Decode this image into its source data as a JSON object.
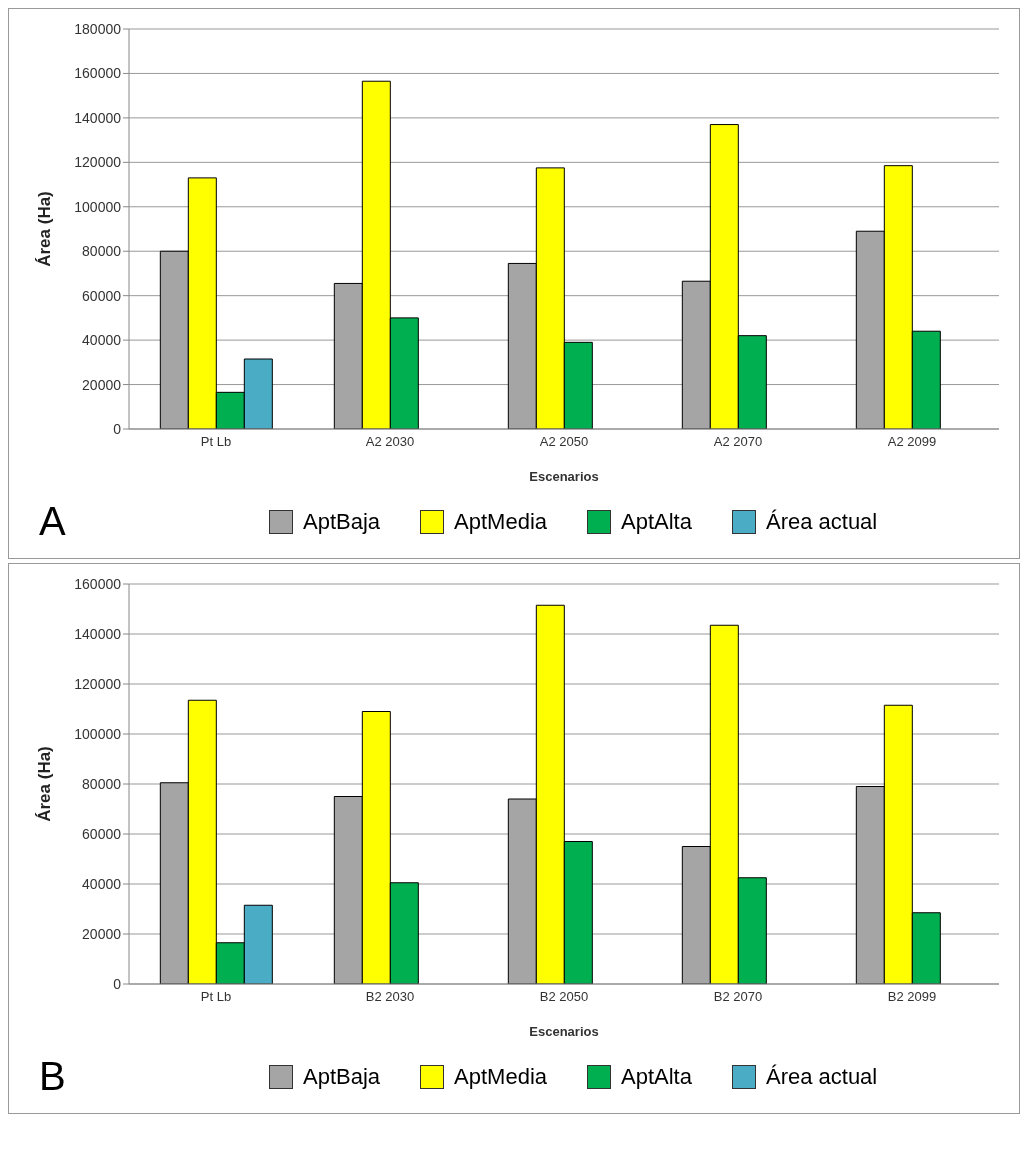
{
  "chart_data": [
    {
      "type": "bar",
      "title": "A",
      "xlabel": "Escenarios",
      "ylabel": "Área (Ha)",
      "categories": [
        "Pt Lb",
        "A2 2030",
        "A2 2050",
        "A2 2070",
        "A2 2099"
      ],
      "ylim": [
        0,
        180000
      ],
      "yticks": [
        0,
        20000,
        40000,
        60000,
        80000,
        100000,
        120000,
        140000,
        160000,
        180000
      ],
      "grid": "y",
      "legend": "bottom",
      "series": [
        {
          "name": "AptBaja",
          "color": "#a5a5a5",
          "values": [
            80000,
            65500,
            74500,
            66500,
            89000
          ]
        },
        {
          "name": "AptMedia",
          "color": "#ffff00",
          "values": [
            113000,
            156500,
            117500,
            137000,
            118500
          ]
        },
        {
          "name": "AptAlta",
          "color": "#00b050",
          "values": [
            16500,
            50000,
            39000,
            42000,
            44000
          ]
        },
        {
          "name": "Área actual",
          "color": "#4bacc6",
          "values": [
            31500,
            null,
            null,
            null,
            null
          ]
        }
      ]
    },
    {
      "type": "bar",
      "title": "B",
      "xlabel": "Escenarios",
      "ylabel": "Área (Ha)",
      "categories": [
        "Pt Lb",
        "B2 2030",
        "B2 2050",
        "B2 2070",
        "B2 2099"
      ],
      "ylim": [
        0,
        160000
      ],
      "yticks": [
        0,
        20000,
        40000,
        60000,
        80000,
        100000,
        120000,
        140000,
        160000
      ],
      "grid": "y",
      "legend": "bottom",
      "series": [
        {
          "name": "AptBaja",
          "color": "#a5a5a5",
          "values": [
            80500,
            75000,
            74000,
            55000,
            79000
          ]
        },
        {
          "name": "AptMedia",
          "color": "#ffff00",
          "values": [
            113500,
            109000,
            151500,
            143500,
            111500
          ]
        },
        {
          "name": "AptAlta",
          "color": "#00b050",
          "values": [
            16500,
            40500,
            57000,
            42500,
            28500
          ]
        },
        {
          "name": "Área actual",
          "color": "#4bacc6",
          "values": [
            31500,
            null,
            null,
            null,
            null
          ]
        }
      ]
    }
  ]
}
